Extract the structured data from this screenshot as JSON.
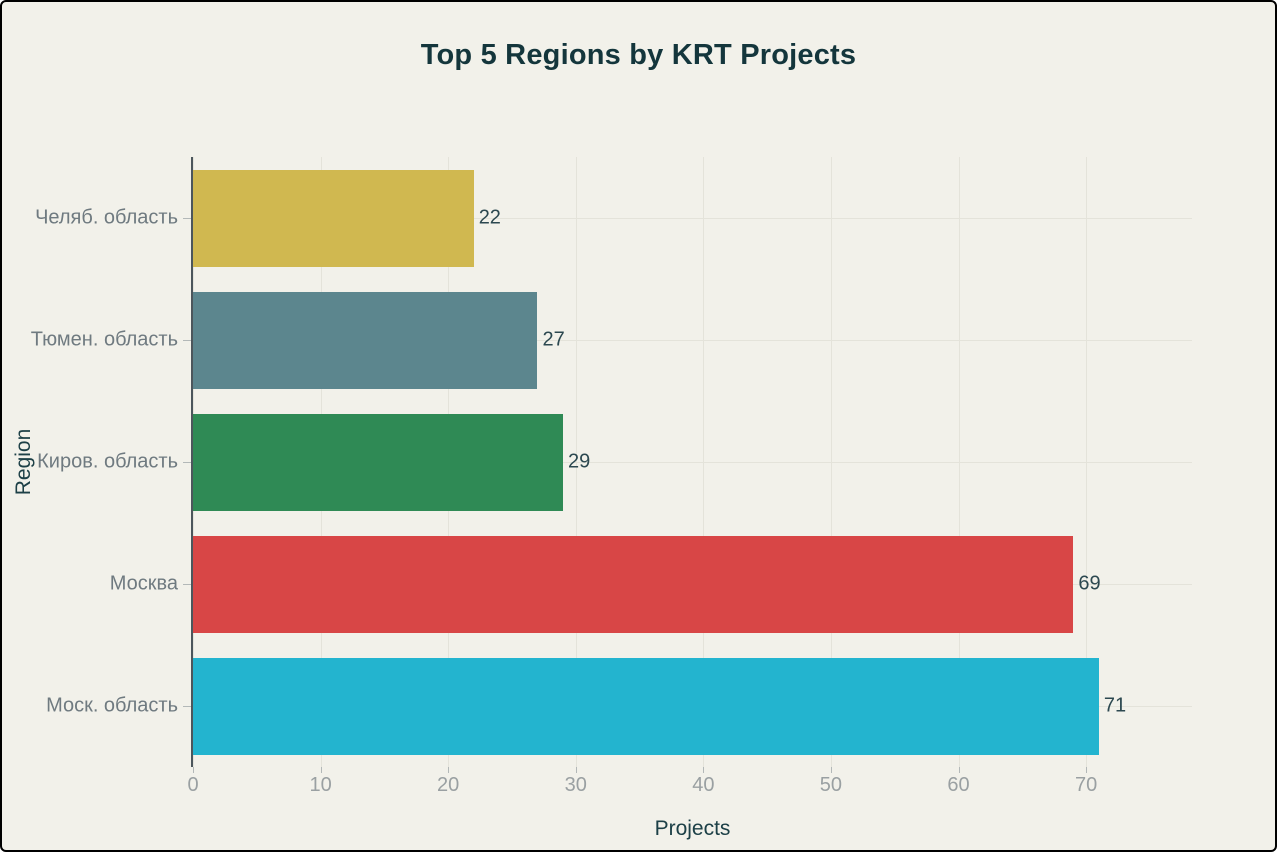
{
  "chart_data": {
    "type": "bar",
    "orientation": "horizontal",
    "title": "Top 5 Regions by KRT Projects",
    "xlabel": "Projects",
    "ylabel": "Region",
    "categories": [
      "Челяб. область",
      "Тюмен. область",
      "Киров. область",
      "Москва",
      "Моск. область"
    ],
    "values": [
      22,
      27,
      29,
      69,
      71
    ],
    "bar_colors": [
      "#d0b850",
      "#5c868e",
      "#2f8a55",
      "#d84646",
      "#23b4cf"
    ],
    "xlim": [
      0,
      78.3
    ],
    "xticks": [
      0,
      10,
      20,
      30,
      40,
      50,
      60,
      70
    ],
    "grid": true,
    "legend": "none"
  },
  "colors": {
    "background": "#f2f1ea",
    "title_text": "#14363c",
    "axis_title_text": "#1d4047",
    "tick_text": "#9aa0a2",
    "category_text": "#6f7a80",
    "value_text": "#2c4850",
    "gridline": "#e4e3da",
    "tick_mark": "#b3b8b8",
    "axis_spine": "#4c565c"
  }
}
